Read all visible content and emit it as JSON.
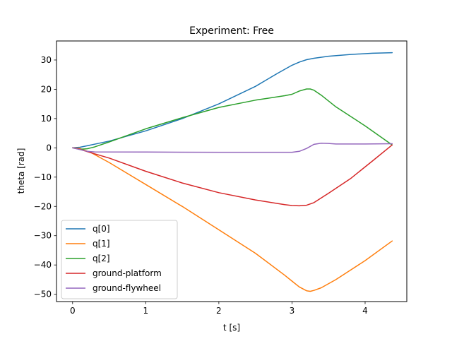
{
  "chart_data": {
    "type": "line",
    "title": "Experiment: Free",
    "xlabel": "t [s]",
    "ylabel": "theta [rad]",
    "xlim": [
      -0.22,
      4.57
    ],
    "ylim": [
      -52.5,
      36.5
    ],
    "xticks": [
      0,
      1,
      2,
      3,
      4
    ],
    "yticks": [
      -50,
      -40,
      -30,
      -20,
      -10,
      0,
      10,
      20,
      30
    ],
    "grid": false,
    "legend_position": "lower-left",
    "series": [
      {
        "name": "q[0]",
        "color": "#1f77b4",
        "points": [
          [
            0,
            0
          ],
          [
            0.1,
            0.2
          ],
          [
            0.2,
            0.7
          ],
          [
            0.5,
            2.3
          ],
          [
            1.0,
            5.8
          ],
          [
            1.5,
            10
          ],
          [
            2.0,
            15
          ],
          [
            2.5,
            21
          ],
          [
            2.8,
            25.4
          ],
          [
            3.0,
            28.2
          ],
          [
            3.1,
            29.3
          ],
          [
            3.2,
            30.1
          ],
          [
            3.3,
            30.6
          ],
          [
            3.5,
            31.3
          ],
          [
            3.8,
            31.9
          ],
          [
            4.1,
            32.3
          ],
          [
            4.37,
            32.5
          ]
        ]
      },
      {
        "name": "q[1]",
        "color": "#ff7f0e",
        "points": [
          [
            0,
            0
          ],
          [
            0.1,
            -0.2
          ],
          [
            0.25,
            -1.6
          ],
          [
            0.5,
            -5
          ],
          [
            1.0,
            -12.5
          ],
          [
            1.5,
            -20
          ],
          [
            2.0,
            -28
          ],
          [
            2.5,
            -36
          ],
          [
            2.9,
            -43.5
          ],
          [
            3.0,
            -45.5
          ],
          [
            3.1,
            -47.5
          ],
          [
            3.2,
            -48.8
          ],
          [
            3.25,
            -49
          ],
          [
            3.3,
            -48.7
          ],
          [
            3.4,
            -47.8
          ],
          [
            3.6,
            -45
          ],
          [
            4.0,
            -38.5
          ],
          [
            4.37,
            -31.8
          ]
        ]
      },
      {
        "name": "q[2]",
        "color": "#2ca02c",
        "points": [
          [
            0,
            0
          ],
          [
            0.1,
            -0.5
          ],
          [
            0.2,
            -0.3
          ],
          [
            0.3,
            0.3
          ],
          [
            0.5,
            2
          ],
          [
            1.0,
            6.5
          ],
          [
            1.5,
            10.3
          ],
          [
            2.0,
            13.8
          ],
          [
            2.5,
            16.3
          ],
          [
            2.9,
            17.8
          ],
          [
            3.0,
            18.3
          ],
          [
            3.1,
            19.4
          ],
          [
            3.2,
            20.1
          ],
          [
            3.25,
            20.1
          ],
          [
            3.3,
            19.7
          ],
          [
            3.4,
            18
          ],
          [
            3.6,
            14
          ],
          [
            4.0,
            7.5
          ],
          [
            4.37,
            1
          ]
        ]
      },
      {
        "name": "ground-platform",
        "color": "#d62728",
        "points": [
          [
            0,
            0
          ],
          [
            0.1,
            -0.5
          ],
          [
            0.2,
            -1.3
          ],
          [
            0.5,
            -3.5
          ],
          [
            1.0,
            -8
          ],
          [
            1.5,
            -12
          ],
          [
            2.0,
            -15.3
          ],
          [
            2.5,
            -17.8
          ],
          [
            2.9,
            -19.4
          ],
          [
            3.0,
            -19.7
          ],
          [
            3.1,
            -19.8
          ],
          [
            3.2,
            -19.6
          ],
          [
            3.3,
            -18.7
          ],
          [
            3.5,
            -15.5
          ],
          [
            3.8,
            -10.5
          ],
          [
            4.1,
            -4.5
          ],
          [
            4.37,
            1
          ]
        ]
      },
      {
        "name": "ground-flywheel",
        "color": "#9467bd",
        "points": [
          [
            0,
            0
          ],
          [
            0.1,
            -0.6
          ],
          [
            0.2,
            -1.2
          ],
          [
            0.3,
            -1.4
          ],
          [
            1.0,
            -1.45
          ],
          [
            2.0,
            -1.5
          ],
          [
            3.0,
            -1.5
          ],
          [
            3.1,
            -1.2
          ],
          [
            3.2,
            -0.2
          ],
          [
            3.3,
            1.2
          ],
          [
            3.4,
            1.6
          ],
          [
            3.5,
            1.5
          ],
          [
            3.6,
            1.3
          ],
          [
            4.0,
            1.3
          ],
          [
            4.37,
            1.4
          ]
        ]
      }
    ]
  }
}
